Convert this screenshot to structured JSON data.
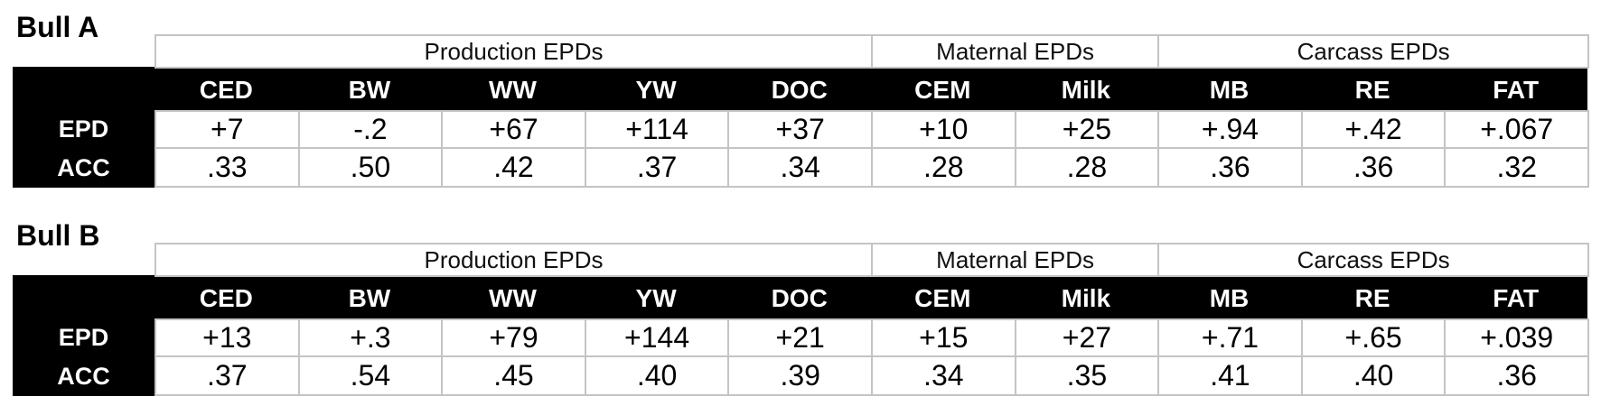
{
  "tables": [
    {
      "title": "Bull A",
      "groups": [
        {
          "label": "Production EPDs",
          "columns": [
            "CED",
            "BW",
            "WW",
            "YW",
            "DOC"
          ]
        },
        {
          "label": "Maternal EPDs",
          "columns": [
            "CEM",
            "Milk"
          ]
        },
        {
          "label": "Carcass EPDs",
          "columns": [
            "MB",
            "RE",
            "FAT"
          ]
        }
      ],
      "rows": [
        {
          "label": "EPD",
          "values": [
            "+7",
            "-.2",
            "+67",
            "+114",
            "+37",
            "+10",
            "+25",
            "+.94",
            "+.42",
            "+.067"
          ]
        },
        {
          "label": "ACC",
          "values": [
            ".33",
            ".50",
            ".42",
            ".37",
            ".34",
            ".28",
            ".28",
            ".36",
            ".36",
            ".32"
          ]
        }
      ]
    },
    {
      "title": "Bull B",
      "groups": [
        {
          "label": "Production EPDs",
          "columns": [
            "CED",
            "BW",
            "WW",
            "YW",
            "DOC"
          ]
        },
        {
          "label": "Maternal EPDs",
          "columns": [
            "CEM",
            "Milk"
          ]
        },
        {
          "label": "Carcass EPDs",
          "columns": [
            "MB",
            "RE",
            "FAT"
          ]
        }
      ],
      "rows": [
        {
          "label": "EPD",
          "values": [
            "+13",
            "+.3",
            "+79",
            "+144",
            "+21",
            "+15",
            "+27",
            "+.71",
            "+.65",
            "+.039"
          ]
        },
        {
          "label": "ACC",
          "values": [
            ".37",
            ".54",
            ".45",
            ".40",
            ".39",
            ".34",
            ".35",
            ".41",
            ".40",
            ".36"
          ]
        }
      ]
    }
  ]
}
